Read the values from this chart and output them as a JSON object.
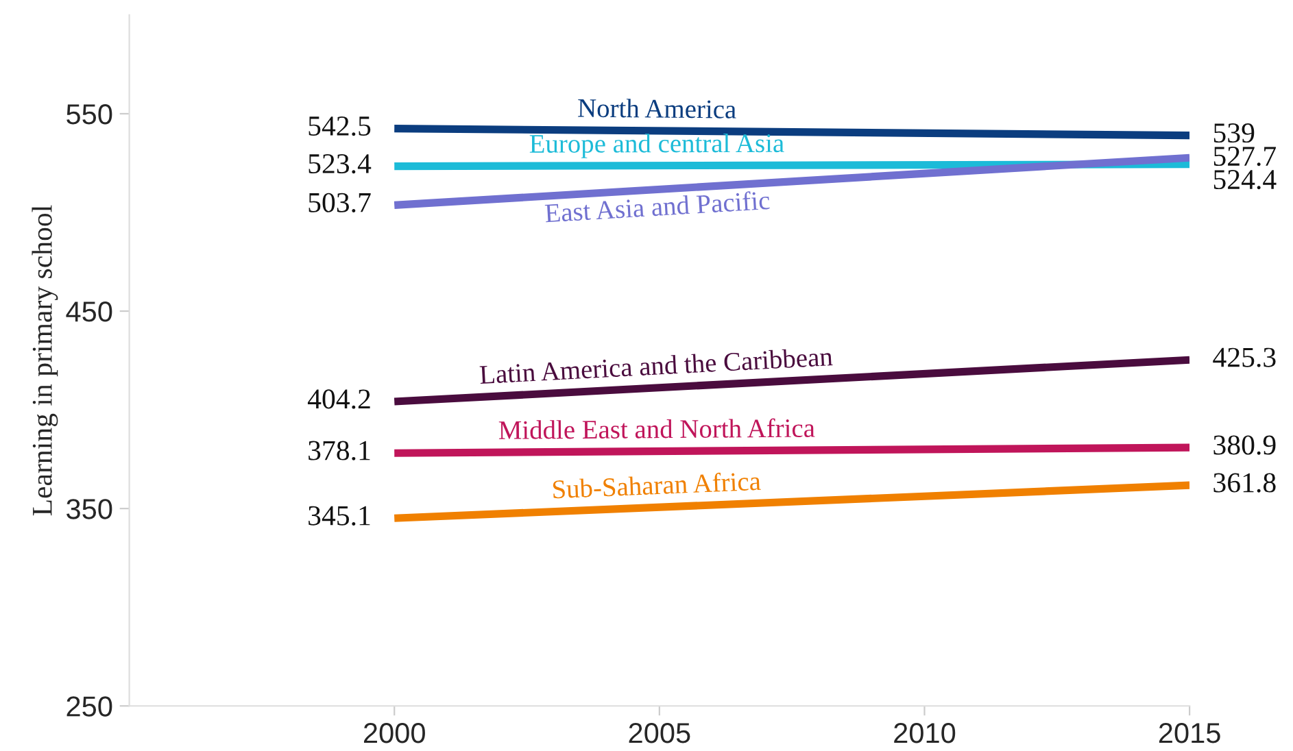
{
  "chart_data": {
    "type": "line",
    "ylabel": "Learning in primary school",
    "x": [
      2000,
      2015
    ],
    "xlim": [
      1995,
      2015
    ],
    "xticks": [
      2000,
      2005,
      2010,
      2015
    ],
    "ylim": [
      250,
      600
    ],
    "yticks": [
      250,
      350,
      450,
      550
    ],
    "grid": false,
    "legend": false,
    "marker": "none",
    "line_style": "solid",
    "series": [
      {
        "name": "North America",
        "color": "#0b3d7f",
        "values": [
          542.5,
          539
        ],
        "value_labels": [
          "542.5",
          "539"
        ]
      },
      {
        "name": "Europe and central Asia",
        "color": "#1cbbd8",
        "values": [
          523.4,
          524.4
        ],
        "value_labels": [
          "523.4",
          "524.4"
        ]
      },
      {
        "name": "East Asia and Pacific",
        "color": "#7070d0",
        "values": [
          503.7,
          527.7
        ],
        "value_labels": [
          "503.7",
          "527.7"
        ]
      },
      {
        "name": "Latin America and the Caribbean",
        "color": "#4a0c3e",
        "values": [
          404.2,
          425.3
        ],
        "value_labels": [
          "404.2",
          "425.3"
        ]
      },
      {
        "name": "Middle East and North Africa",
        "color": "#c0155a",
        "values": [
          378.1,
          380.9
        ],
        "value_labels": [
          "378.1",
          "380.9"
        ]
      },
      {
        "name": "Sub-Saharan Africa",
        "color": "#f08000",
        "values": [
          345.1,
          361.8
        ],
        "value_labels": [
          "345.1",
          "361.8"
        ]
      }
    ]
  }
}
